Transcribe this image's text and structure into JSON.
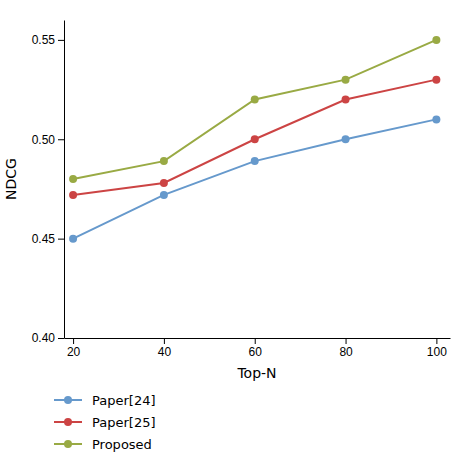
{
  "chart_data": {
    "type": "line",
    "x": [
      20,
      40,
      60,
      80,
      100
    ],
    "series": [
      {
        "name": "Paper[24]",
        "color": "#6699cc",
        "values": [
          0.45,
          0.472,
          0.489,
          0.5,
          0.51
        ]
      },
      {
        "name": "Paper[25]",
        "color": "#cc4444",
        "values": [
          0.472,
          0.478,
          0.5,
          0.52,
          0.53
        ]
      },
      {
        "name": "Proposed",
        "color": "#99aa44",
        "values": [
          0.48,
          0.489,
          0.52,
          0.53,
          0.55
        ]
      }
    ],
    "xlabel": "Top-N",
    "ylabel": "NDCG",
    "xlim": [
      18,
      103
    ],
    "ylim": [
      0.4,
      0.56
    ],
    "xticks": [
      20,
      40,
      60,
      80,
      100
    ],
    "yticks": [
      {
        "value": 0.4,
        "label": "0.40"
      },
      0.45,
      {
        "value": 0.5,
        "label": "0.50"
      },
      0.55
    ],
    "marker": "circle",
    "grid": false,
    "legend": "bottom"
  }
}
